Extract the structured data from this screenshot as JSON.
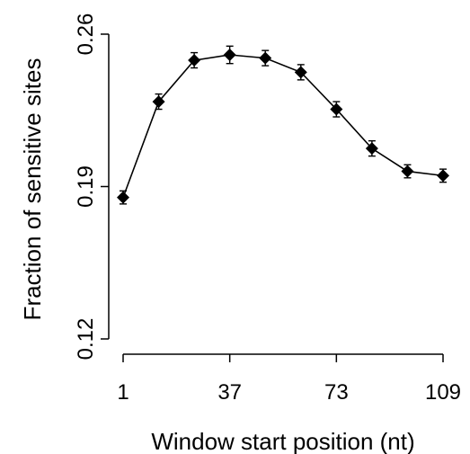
{
  "chart_data": {
    "type": "line",
    "title": "",
    "xlabel": "Window start position (nt)",
    "ylabel": "Fraction of sensitive sites",
    "x": [
      1,
      13,
      25,
      37,
      49,
      61,
      73,
      85,
      97,
      109
    ],
    "series": [
      {
        "name": "",
        "values": [
          0.185,
          0.229,
          0.248,
          0.2505,
          0.249,
          0.2425,
          0.2255,
          0.2075,
          0.197,
          0.195
        ],
        "error": [
          0.003,
          0.0035,
          0.0035,
          0.004,
          0.0035,
          0.0035,
          0.0035,
          0.0035,
          0.003,
          0.003
        ]
      }
    ],
    "xticks": [
      1,
      37,
      73,
      109
    ],
    "xtick_labels": [
      "1",
      "37",
      "73",
      "109"
    ],
    "yticks": [
      0.12,
      0.19,
      0.26
    ],
    "ytick_labels": [
      "0.12",
      "0.19",
      "0.26"
    ],
    "xlim": [
      1,
      109
    ],
    "ylim": [
      0.12,
      0.26
    ],
    "grid": false,
    "marker": "diamond",
    "color": "#000000"
  }
}
